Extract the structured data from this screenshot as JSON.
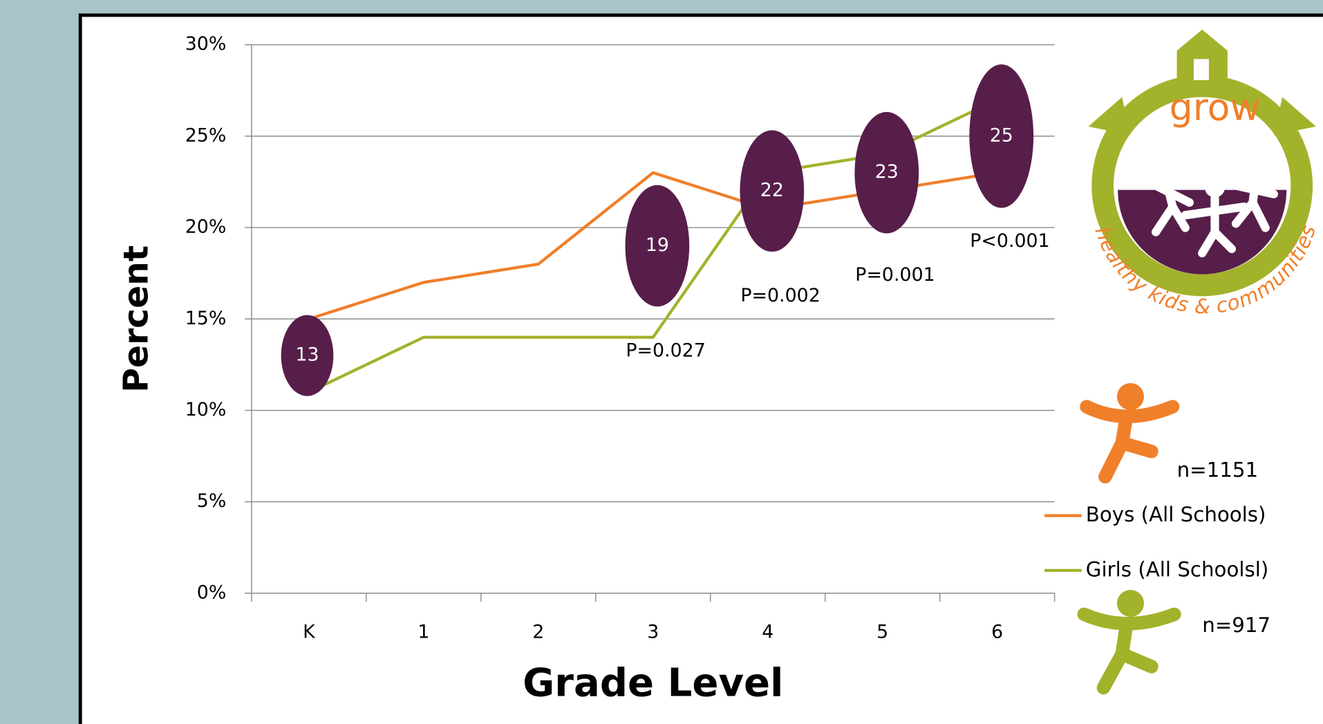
{
  "chart_data": {
    "type": "line",
    "x_label": "Grade Level",
    "y_label": "Percent",
    "categories": [
      "K",
      "1",
      "2",
      "3",
      "4",
      "5",
      "6"
    ],
    "series": [
      {
        "name": "Boys (All Schools)",
        "color": "#f07f2a",
        "values": [
          15,
          17,
          18,
          23,
          21,
          22,
          23
        ]
      },
      {
        "name": "Girls (All Schoolsl)",
        "color": "#a3b22b",
        "values": [
          11,
          14,
          14,
          14,
          23,
          24,
          27
        ]
      }
    ],
    "ylim": [
      0,
      30
    ],
    "yticks": [
      {
        "value": 0,
        "label": "0%"
      },
      {
        "value": 5,
        "label": "5%"
      },
      {
        "value": 10,
        "label": "10%"
      },
      {
        "value": 15,
        "label": "15%"
      },
      {
        "value": 20,
        "label": "20%"
      },
      {
        "value": 25,
        "label": "25%"
      },
      {
        "value": 30,
        "label": "30%"
      }
    ],
    "grid": true,
    "annotation_color": "#571e4a",
    "annotations": [
      {
        "category": "K",
        "value": 13
      },
      {
        "category": "3",
        "value": 19,
        "text": "P=0.027"
      },
      {
        "category": "4",
        "value": 22,
        "text": "P=0.002"
      },
      {
        "category": "5",
        "value": 23,
        "text": "P=0.001"
      },
      {
        "category": "6",
        "value": 25,
        "text": "P<0.001"
      }
    ],
    "sample_sizes": [
      "n=1151",
      "n=917"
    ],
    "logo": {
      "title": "grow",
      "tagline": "healthy kids & communities"
    }
  }
}
